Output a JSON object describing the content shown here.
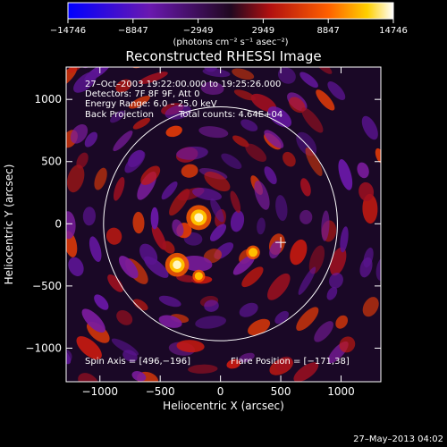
{
  "chart_data": {
    "type": "heatmap",
    "title": "Reconstructed RHESSI Image",
    "xlabel": "Heliocentric X (arcsec)",
    "ylabel": "Heliocentric Y (arcsec)",
    "xlim": [
      -1280,
      1330
    ],
    "ylim": [
      -1270,
      1260
    ],
    "xticks": [
      -1000,
      -500,
      0,
      500,
      1000
    ],
    "yticks": [
      -1000,
      -500,
      0,
      500,
      1000
    ],
    "xtick_labels": [
      "−1000",
      "−500",
      "0",
      "500",
      "1000"
    ],
    "ytick_labels": [
      "−1000",
      "−500",
      "0",
      "500",
      "1000"
    ],
    "colorbar": {
      "ticks": [
        -14746,
        -8847,
        -2949,
        2949,
        8847,
        14746
      ],
      "tick_labels": [
        "−14746",
        "−8847",
        "−2949",
        "2949",
        "8847",
        "14746"
      ],
      "unit_label": "(photons cm⁻² s⁻¹ asec⁻²)",
      "colors": [
        "#1010ff",
        "#6a1aa8",
        "#3a1050",
        "#b01010",
        "#ff5a00",
        "#ffffff"
      ]
    },
    "solar_limb_radius_arcsec": 970,
    "marker_cross": {
      "x": 500,
      "y": -150
    },
    "bright_sources": [
      {
        "x": -180,
        "y": 50,
        "level": 1.0
      },
      {
        "x": -360,
        "y": -330,
        "level": 0.95
      },
      {
        "x": 270,
        "y": -230,
        "level": 0.55
      },
      {
        "x": -180,
        "y": -420,
        "level": 0.5
      }
    ],
    "info_lines": [
      "27–Oct–2003 19:22:00.000 to 19:25:26.000",
      "Detectors: 7F 8F 9F, Att 0",
      "Energy Range: 6.0 – 25.0 keV"
    ],
    "info_method": "Back Projection",
    "info_counts": "Total counts: 4.64E+04",
    "spin_axis": "Spin Axis = [496,−196]",
    "flare_position": "Flare Position = [−171,38]",
    "timestamp": "27–May–2013 04:02"
  }
}
